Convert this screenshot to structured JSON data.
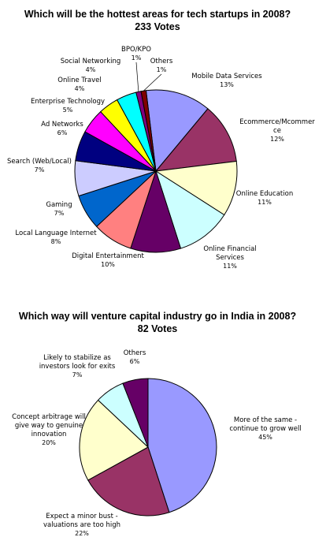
{
  "chart_data": [
    {
      "type": "pie",
      "title": "Which will be the hottest areas for tech startups in 2008?",
      "subtitle": "233 Votes",
      "slices": [
        {
          "label": "Mobile Data Services",
          "value": 13,
          "display": "13%",
          "color": "#9999ff"
        },
        {
          "label": "Ecommerce/Mcommerce",
          "value": 12,
          "display": "12%",
          "color": "#993366"
        },
        {
          "label": "Online Education",
          "value": 11,
          "display": "11%",
          "color": "#ffffcc"
        },
        {
          "label": "Online Financial Services",
          "value": 11,
          "display": "11%",
          "color": "#ccffff"
        },
        {
          "label": "Digital Entertainment",
          "value": 10,
          "display": "10%",
          "color": "#660066"
        },
        {
          "label": "Local Language Internet",
          "value": 8,
          "display": "8%",
          "color": "#ff8080"
        },
        {
          "label": "Gaming",
          "value": 7,
          "display": "7%",
          "color": "#0066cc"
        },
        {
          "label": "Search (Web/Local)",
          "value": 7,
          "display": "7%",
          "color": "#ccccff"
        },
        {
          "label": "Ad Networks",
          "value": 6,
          "display": "6%",
          "color": "#000080"
        },
        {
          "label": "Enterprise Technology",
          "value": 5,
          "display": "5%",
          "color": "#ff00ff"
        },
        {
          "label": "Online Travel",
          "value": 4,
          "display": "4%",
          "color": "#ffff00"
        },
        {
          "label": "Social Networking",
          "value": 4,
          "display": "4%",
          "color": "#00ffff"
        },
        {
          "label": "BPO/KPO",
          "value": 1,
          "display": "1%",
          "color": "#800080"
        },
        {
          "label": "Others",
          "value": 1,
          "display": "1%",
          "color": "#800000"
        }
      ]
    },
    {
      "type": "pie",
      "title": "Which way will venture capital industry go in India in 2008?",
      "subtitle": "82 Votes",
      "slices": [
        {
          "label": "More of the same - continue to grow well",
          "value": 45,
          "display": "45%",
          "color": "#9999ff"
        },
        {
          "label": "Expect a minor bust - valuations are too high",
          "value": 22,
          "display": "22%",
          "color": "#993366"
        },
        {
          "label": "Concept arbitrage will give way to genuine innovation",
          "value": 20,
          "display": "20%",
          "color": "#ffffcc"
        },
        {
          "label": "Likely to stabilize as investors look for exits",
          "value": 7,
          "display": "7%",
          "color": "#ccffff"
        },
        {
          "label": "Others",
          "value": 6,
          "display": "6%",
          "color": "#660066"
        }
      ]
    }
  ]
}
